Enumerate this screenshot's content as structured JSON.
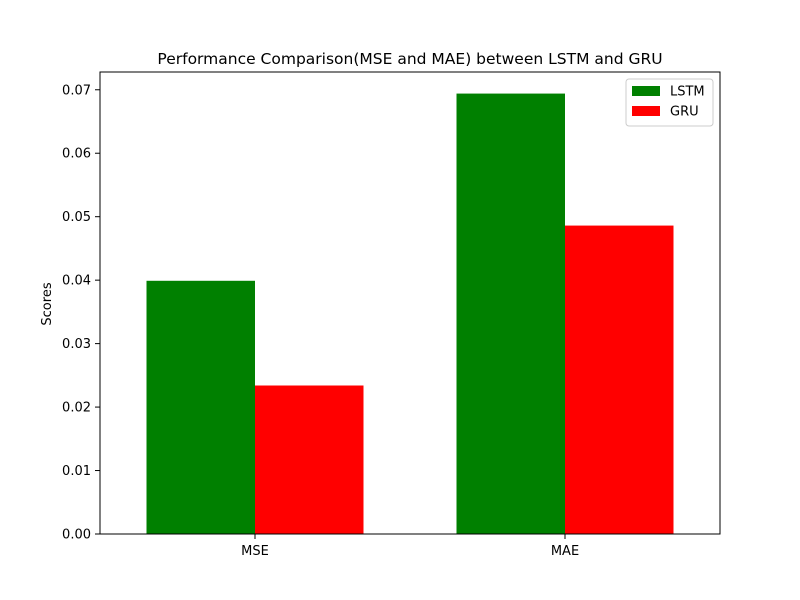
{
  "chart_data": {
    "type": "bar",
    "title": "Performance Comparison(MSE and MAE) between LSTM and GRU",
    "xlabel": "",
    "ylabel": "Scores",
    "categories": [
      "MSE",
      "MAE"
    ],
    "series": [
      {
        "name": "LSTM",
        "values": [
          0.0399,
          0.0694
        ],
        "color": "#008000"
      },
      {
        "name": "GRU",
        "values": [
          0.0234,
          0.0486
        ],
        "color": "#ff0000"
      }
    ],
    "ylim": [
      0,
      0.0728
    ],
    "yticks": [
      0.0,
      0.01,
      0.02,
      0.03,
      0.04,
      0.05,
      0.06,
      0.07
    ],
    "ytick_labels": [
      "0.00",
      "0.01",
      "0.02",
      "0.03",
      "0.04",
      "0.05",
      "0.06",
      "0.07"
    ],
    "grid": false,
    "legend_position": "top-right"
  }
}
